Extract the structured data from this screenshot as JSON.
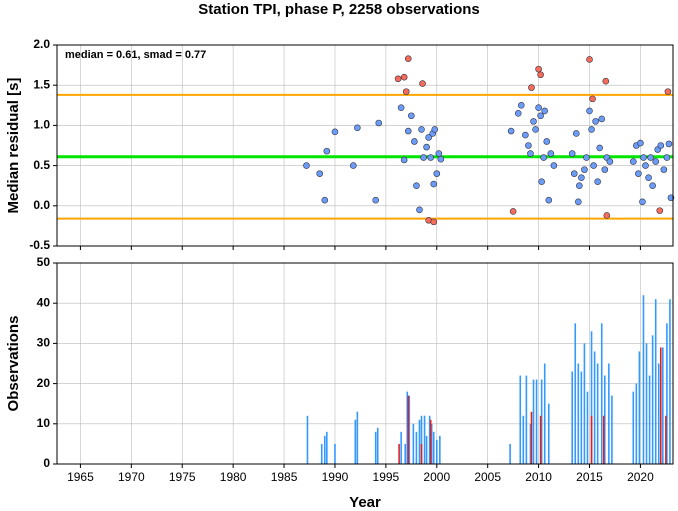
{
  "title": "Station TPI, phase P, 2258 observations",
  "chart_data": [
    {
      "type": "scatter",
      "ylabel": "Median residual [s]",
      "annotation": "median = 0.61, smad = 0.77",
      "xlim": [
        1962.7,
        2023.2
      ],
      "xticks": [
        1965,
        1970,
        1975,
        1980,
        1985,
        1990,
        1995,
        2000,
        2005,
        2010,
        2015,
        2020
      ],
      "ylim": [
        -0.5,
        2.0
      ],
      "yticks": [
        -0.5,
        {
          "value": 0,
          "label": "0.0"
        },
        0.5,
        {
          "value": 1,
          "label": "1.0"
        },
        1.5,
        {
          "value": 2,
          "label": "2.0"
        }
      ],
      "grid": true,
      "hlines": [
        {
          "value": 0.61,
          "color": "#00e600"
        },
        {
          "value": 1.38,
          "color": "#ffa500"
        },
        {
          "value": -0.16,
          "color": "#ffa500"
        }
      ],
      "series": [
        {
          "color": "#6b9cf7",
          "x": [
            1987.2,
            1988.5,
            1989,
            1989.2,
            1990,
            1991.8,
            1992.2,
            1994,
            1994.3,
            1996.5,
            1996.8,
            1997.2,
            1997.5,
            1997.8,
            1998,
            1998.3,
            1998.5,
            1998.7,
            1999,
            1999.2,
            1999.4,
            1999.6,
            1999.7,
            1999.8,
            2000,
            2000.2,
            2000.4,
            2007.3,
            2008,
            2008.3,
            2008.7,
            2009,
            2009.2,
            2009.5,
            2009.7,
            2010,
            2010.2,
            2010.3,
            2010.5,
            2010.6,
            2010.8,
            2011,
            2011.2,
            2011.5,
            2013.3,
            2013.5,
            2013.7,
            2013.9,
            2014,
            2014.2,
            2014.5,
            2014.7,
            2015,
            2015.2,
            2015.4,
            2015.6,
            2015.8,
            2016,
            2016.2,
            2016.5,
            2016.7,
            2017,
            2019.3,
            2019.6,
            2019.8,
            2020,
            2020.2,
            2020.3,
            2020.5,
            2020.8,
            2021,
            2021.2,
            2021.5,
            2021.7,
            2022,
            2022.3,
            2022.6,
            2022.8,
            2023
          ],
          "values": [
            0.5,
            0.4,
            0.07,
            0.68,
            0.92,
            0.5,
            0.97,
            0.07,
            1.03,
            1.22,
            0.57,
            0.93,
            1.12,
            0.8,
            0.25,
            -0.05,
            0.95,
            0.6,
            0.73,
            0.85,
            0.6,
            0.9,
            0.27,
            0.95,
            0.4,
            0.65,
            0.58,
            0.93,
            1.15,
            1.25,
            0.88,
            0.75,
            0.65,
            1.05,
            0.95,
            1.22,
            1.12,
            0.3,
            0.6,
            1.18,
            0.8,
            0.07,
            0.65,
            0.5,
            0.65,
            0.4,
            0.9,
            0.05,
            0.25,
            0.35,
            0.45,
            0.6,
            1.18,
            0.95,
            0.5,
            1.05,
            0.3,
            0.72,
            1.08,
            0.45,
            0.6,
            0.55,
            0.55,
            0.75,
            0.4,
            0.78,
            0.05,
            0.6,
            0.5,
            0.35,
            0.6,
            0.25,
            0.55,
            0.7,
            0.75,
            0.45,
            0.6,
            0.77,
            0.1
          ]
        },
        {
          "color": "#f76b5a",
          "x": [
            1996.2,
            1996.8,
            1997.2,
            1997,
            1998.6,
            1999.2,
            1999.7,
            2007.5,
            2009.3,
            2010,
            2010.2,
            2015,
            2015.3,
            2016.6,
            2016.7,
            2021.9,
            2022.7
          ],
          "values": [
            1.58,
            1.6,
            1.83,
            1.42,
            1.52,
            -0.18,
            -0.2,
            -0.07,
            1.47,
            1.7,
            1.63,
            1.82,
            1.33,
            1.55,
            -0.12,
            -0.06,
            1.42
          ]
        }
      ]
    },
    {
      "type": "bar",
      "ylabel": "Observations",
      "xlabel": "Year",
      "xlim": [
        1962.7,
        2023.2
      ],
      "xticks": [
        1965,
        1970,
        1975,
        1980,
        1985,
        1990,
        1995,
        2000,
        2005,
        2010,
        2015,
        2020
      ],
      "ylim": [
        0,
        50
      ],
      "yticks": [
        0,
        10,
        20,
        30,
        40,
        50
      ],
      "grid": true,
      "series": [
        {
          "color": "#3399ff",
          "x": [
            1987.3,
            1988.7,
            1989,
            1989.2,
            1990,
            1992,
            1992.2,
            1994,
            1994.2,
            1996.5,
            1996.9,
            1997.1,
            1997.3,
            1997.7,
            1998,
            1998.3,
            1998.5,
            1998.8,
            1999,
            1999.3,
            1999.5,
            1999.7,
            2000,
            2000.3,
            2007.2,
            2008.2,
            2008.5,
            2008.8,
            2009.2,
            2009.5,
            2009.8,
            2010.3,
            2010.6,
            2011,
            2013.3,
            2013.6,
            2013.9,
            2014.2,
            2014.5,
            2014.8,
            2015.2,
            2015.5,
            2015.8,
            2016.2,
            2016.5,
            2016.9,
            2017.2,
            2019.3,
            2019.6,
            2019.9,
            2020.3,
            2020.6,
            2020.9,
            2021.2,
            2021.5,
            2021.8,
            2022.2,
            2022.6,
            2022.9
          ],
          "values": [
            12,
            5,
            7,
            8,
            5,
            11,
            13,
            8,
            9,
            8,
            5,
            18,
            17,
            10,
            8,
            11,
            12,
            12,
            7,
            12,
            10,
            8,
            6,
            7,
            5,
            22,
            12,
            22,
            10,
            21,
            21,
            21,
            25,
            15,
            23,
            35,
            25,
            23,
            30,
            18,
            33,
            28,
            25,
            35,
            22,
            25,
            17,
            18,
            20,
            28,
            42,
            30,
            22,
            32,
            41,
            25,
            29,
            35,
            41
          ]
        },
        {
          "color": "#dd2222",
          "x": [
            1996.3,
            1997.2,
            1998.5,
            1999.4,
            2009.3,
            2010.2,
            2015.2,
            2016.4,
            2022,
            2022.5
          ],
          "values": [
            5,
            17,
            5,
            11,
            13,
            12,
            12,
            12,
            29,
            12
          ]
        }
      ]
    }
  ]
}
